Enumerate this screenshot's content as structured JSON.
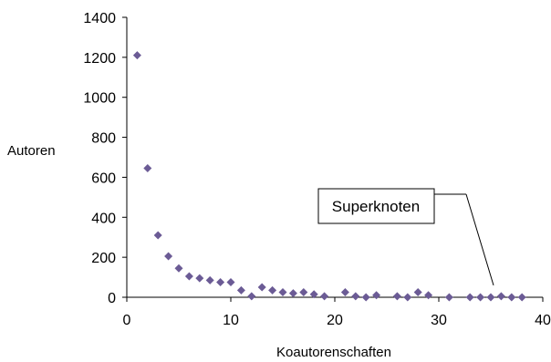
{
  "chart_data": {
    "type": "scatter",
    "title": "",
    "xlabel": "Koautorenschaften",
    "ylabel": "Autoren",
    "xlim": [
      0,
      40
    ],
    "ylim": [
      0,
      1400
    ],
    "xticks": [
      0,
      10,
      20,
      30,
      40
    ],
    "yticks": [
      0,
      200,
      400,
      600,
      800,
      1000,
      1200,
      1400
    ],
    "grid": false,
    "legend": "none",
    "marker": "diamond",
    "marker_color": "#6b5b95",
    "series": [
      {
        "x": [
          1,
          2,
          3,
          4,
          5,
          6,
          7,
          8,
          9,
          10,
          11,
          12,
          13,
          14,
          15,
          16,
          17,
          18,
          19,
          21,
          22,
          23,
          24,
          26,
          27,
          28,
          29,
          31,
          33,
          34,
          35,
          36,
          37,
          38
        ],
        "y": [
          1210,
          645,
          310,
          205,
          145,
          105,
          95,
          85,
          75,
          75,
          35,
          5,
          50,
          35,
          25,
          20,
          25,
          15,
          5,
          25,
          5,
          0,
          10,
          5,
          0,
          25,
          10,
          0,
          0,
          0,
          0,
          5,
          0,
          0
        ]
      }
    ],
    "annotations": [
      {
        "text": "Superknoten",
        "x": 35,
        "y": 5
      }
    ]
  }
}
